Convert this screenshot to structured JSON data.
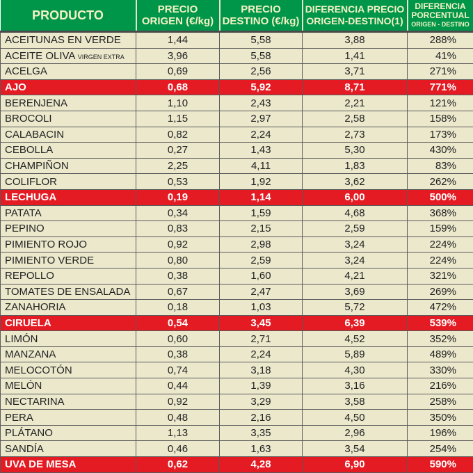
{
  "header": {
    "producto": "PRODUCTO",
    "origen": [
      "PRECIO",
      "ORIGEN (€/kg)"
    ],
    "destino": [
      "PRECIO",
      "DESTINO (€/kg)"
    ],
    "diferencia": [
      "DIFERENCIA PRECIO",
      "ORIGEN-DESTINO(1)"
    ],
    "porcentual": [
      "DIFERENCIA",
      "PORCENTUAL",
      "ORIGEN - DESTINO"
    ]
  },
  "colors": {
    "header_bg": "#00964a",
    "row_bg": "#ebe8cc",
    "highlight_bg": "#e41b23"
  },
  "rows": [
    {
      "name": "ACEITUNAS EN VERDE",
      "origen": "1,44",
      "destino": "5,58",
      "dif": "3,88",
      "pct": "288%"
    },
    {
      "name": "ACEITE OLIVA",
      "sub": "VIRGEN EXTRA",
      "origen": "3,96",
      "destino": "5,58",
      "dif": "1,41",
      "pct": "41%"
    },
    {
      "name": "ACELGA",
      "origen": "0,69",
      "destino": "2,56",
      "dif": "3,71",
      "pct": "271%"
    },
    {
      "name": "AJO",
      "origen": "0,68",
      "destino": "5,92",
      "dif": "8,71",
      "pct": "771%",
      "hl": true
    },
    {
      "name": "BERENJENA",
      "origen": "1,10",
      "destino": "2,43",
      "dif": "2,21",
      "pct": "121%"
    },
    {
      "name": "BROCOLI",
      "origen": "1,15",
      "destino": "2,97",
      "dif": "2,58",
      "pct": "158%"
    },
    {
      "name": "CALABACIN",
      "origen": "0,82",
      "destino": "2,24",
      "dif": "2,73",
      "pct": "173%"
    },
    {
      "name": "CEBOLLA",
      "origen": "0,27",
      "destino": "1,43",
      "dif": "5,30",
      "pct": "430%"
    },
    {
      "name": "CHAMPIÑON",
      "origen": "2,25",
      "destino": "4,11",
      "dif": "1,83",
      "pct": "83%"
    },
    {
      "name": "COLIFLOR",
      "origen": "0,53",
      "destino": "1,92",
      "dif": "3,62",
      "pct": "262%"
    },
    {
      "name": "LECHUGA",
      "origen": "0,19",
      "destino": "1,14",
      "dif": "6,00",
      "pct": "500%",
      "hl": true
    },
    {
      "name": "PATATA",
      "origen": "0,34",
      "destino": "1,59",
      "dif": "4,68",
      "pct": "368%"
    },
    {
      "name": "PEPINO",
      "origen": "0,83",
      "destino": "2,15",
      "dif": "2,59",
      "pct": "159%"
    },
    {
      "name": "PIMIENTO ROJO",
      "origen": "0,92",
      "destino": "2,98",
      "dif": "3,24",
      "pct": "224%"
    },
    {
      "name": "PIMIENTO VERDE",
      "origen": "0,80",
      "destino": "2,59",
      "dif": "3,24",
      "pct": "224%"
    },
    {
      "name": "REPOLLO",
      "origen": "0,38",
      "destino": "1,60",
      "dif": "4,21",
      "pct": "321%"
    },
    {
      "name": "TOMATES DE ENSALADA",
      "origen": "0,67",
      "destino": "2,47",
      "dif": "3,69",
      "pct": "269%"
    },
    {
      "name": "ZANAHORIA",
      "origen": "0,18",
      "destino": "1,03",
      "dif": "5,72",
      "pct": "472%"
    },
    {
      "name": "CIRUELA",
      "origen": "0,54",
      "destino": "3,45",
      "dif": "6,39",
      "pct": "539%",
      "hl": true
    },
    {
      "name": "LIMÓN",
      "origen": "0,60",
      "destino": "2,71",
      "dif": "4,52",
      "pct": "352%"
    },
    {
      "name": "MANZANA",
      "origen": "0,38",
      "destino": "2,24",
      "dif": "5,89",
      "pct": "489%"
    },
    {
      "name": "MELOCOTÓN",
      "origen": "0,74",
      "destino": "3,18",
      "dif": "4,30",
      "pct": "330%"
    },
    {
      "name": "MELÓN",
      "origen": "0,44",
      "destino": "1,39",
      "dif": "3,16",
      "pct": "216%"
    },
    {
      "name": "NECTARINA",
      "origen": "0,92",
      "destino": "3,29",
      "dif": "3,58",
      "pct": "258%"
    },
    {
      "name": "PERA",
      "origen": "0,48",
      "destino": "2,16",
      "dif": "4,50",
      "pct": "350%"
    },
    {
      "name": "PLÁTANO",
      "origen": "1,13",
      "destino": "3,35",
      "dif": "2,96",
      "pct": "196%"
    },
    {
      "name": "SANDÍA",
      "origen": "0,46",
      "destino": "1,63",
      "dif": "3,54",
      "pct": "254%"
    },
    {
      "name": "UVA DE MESA",
      "origen": "0,62",
      "destino": "4,28",
      "dif": "6,90",
      "pct": "590%",
      "hl": true
    }
  ]
}
